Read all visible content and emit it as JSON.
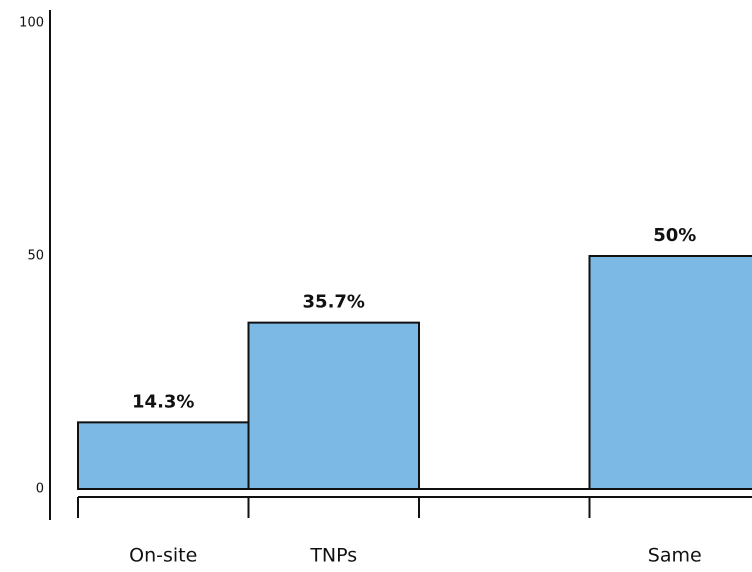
{
  "chart_data": {
    "type": "bar",
    "categories": [
      "On-site",
      "TNPs",
      null,
      "Same"
    ],
    "values": [
      14.3,
      35.7,
      null,
      50
    ],
    "value_labels": [
      "14.3%",
      "35.7%",
      null,
      "50%"
    ],
    "color": "#7db9e5",
    "ylim": [
      0,
      100
    ],
    "yticks": [
      0,
      50,
      100
    ]
  }
}
